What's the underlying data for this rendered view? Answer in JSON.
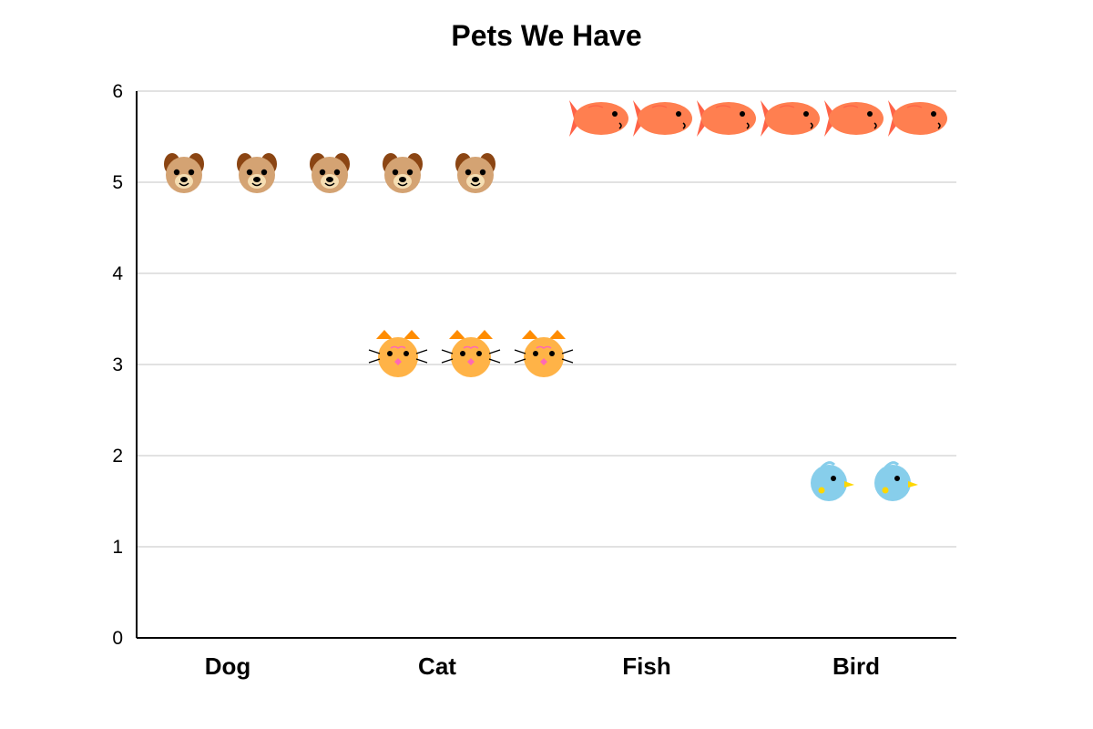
{
  "chart_data": {
    "type": "pictograph",
    "title": "Pets We Have",
    "categories": [
      "Dog",
      "Cat",
      "Fish",
      "Bird"
    ],
    "values": [
      5,
      3,
      6,
      2
    ],
    "icons": [
      "dog-icon",
      "cat-icon",
      "fish-icon",
      "bird-icon"
    ],
    "yticks": [
      "0",
      "1",
      "2",
      "3",
      "4",
      "5",
      "6"
    ],
    "ylim": [
      0,
      6
    ],
    "grid": true,
    "colors": {
      "dog_fur": "#D4A373",
      "dog_ears": "#8B4513",
      "cat_fur": "#FFB347",
      "cat_ears": "#FF8C00",
      "cat_nose": "#FF69B4",
      "fish_body": "#FF7F50",
      "fish_tail": "#FF6347",
      "bird_body": "#87CEEB",
      "bird_beak": "#FFD700"
    }
  }
}
